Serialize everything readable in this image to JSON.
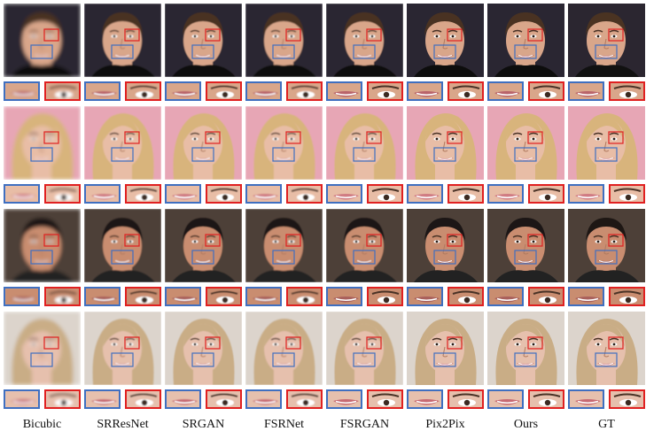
{
  "methods": [
    "Bicubic",
    "SRResNet",
    "SRGAN",
    "FSRNet",
    "FSRGAN",
    "Pix2Pix",
    "Ours",
    "GT"
  ],
  "rows": [
    {
      "subject": "young man, dark hair",
      "bg": "#2b2630",
      "skin": "#d9a68a",
      "hair": "#4a3322",
      "lip": "#b9646a"
    },
    {
      "subject": "blonde woman, pink background",
      "bg": "#e7a6b5",
      "skin": "#e8bda6",
      "hair": "#d8b47c",
      "lip": "#d07b83"
    },
    {
      "subject": "man, dark hair, stubble",
      "bg": "#4d4038",
      "skin": "#c98d70",
      "hair": "#1e1714",
      "lip": "#a9605c"
    },
    {
      "subject": "blonde woman, smiling",
      "bg": "#dcd4cc",
      "skin": "#e6c0ad",
      "hair": "#c9ad86",
      "lip": "#c86a73"
    }
  ],
  "colors": {
    "zoom_blue": "#3f6fc0",
    "zoom_red": "#e02020"
  }
}
